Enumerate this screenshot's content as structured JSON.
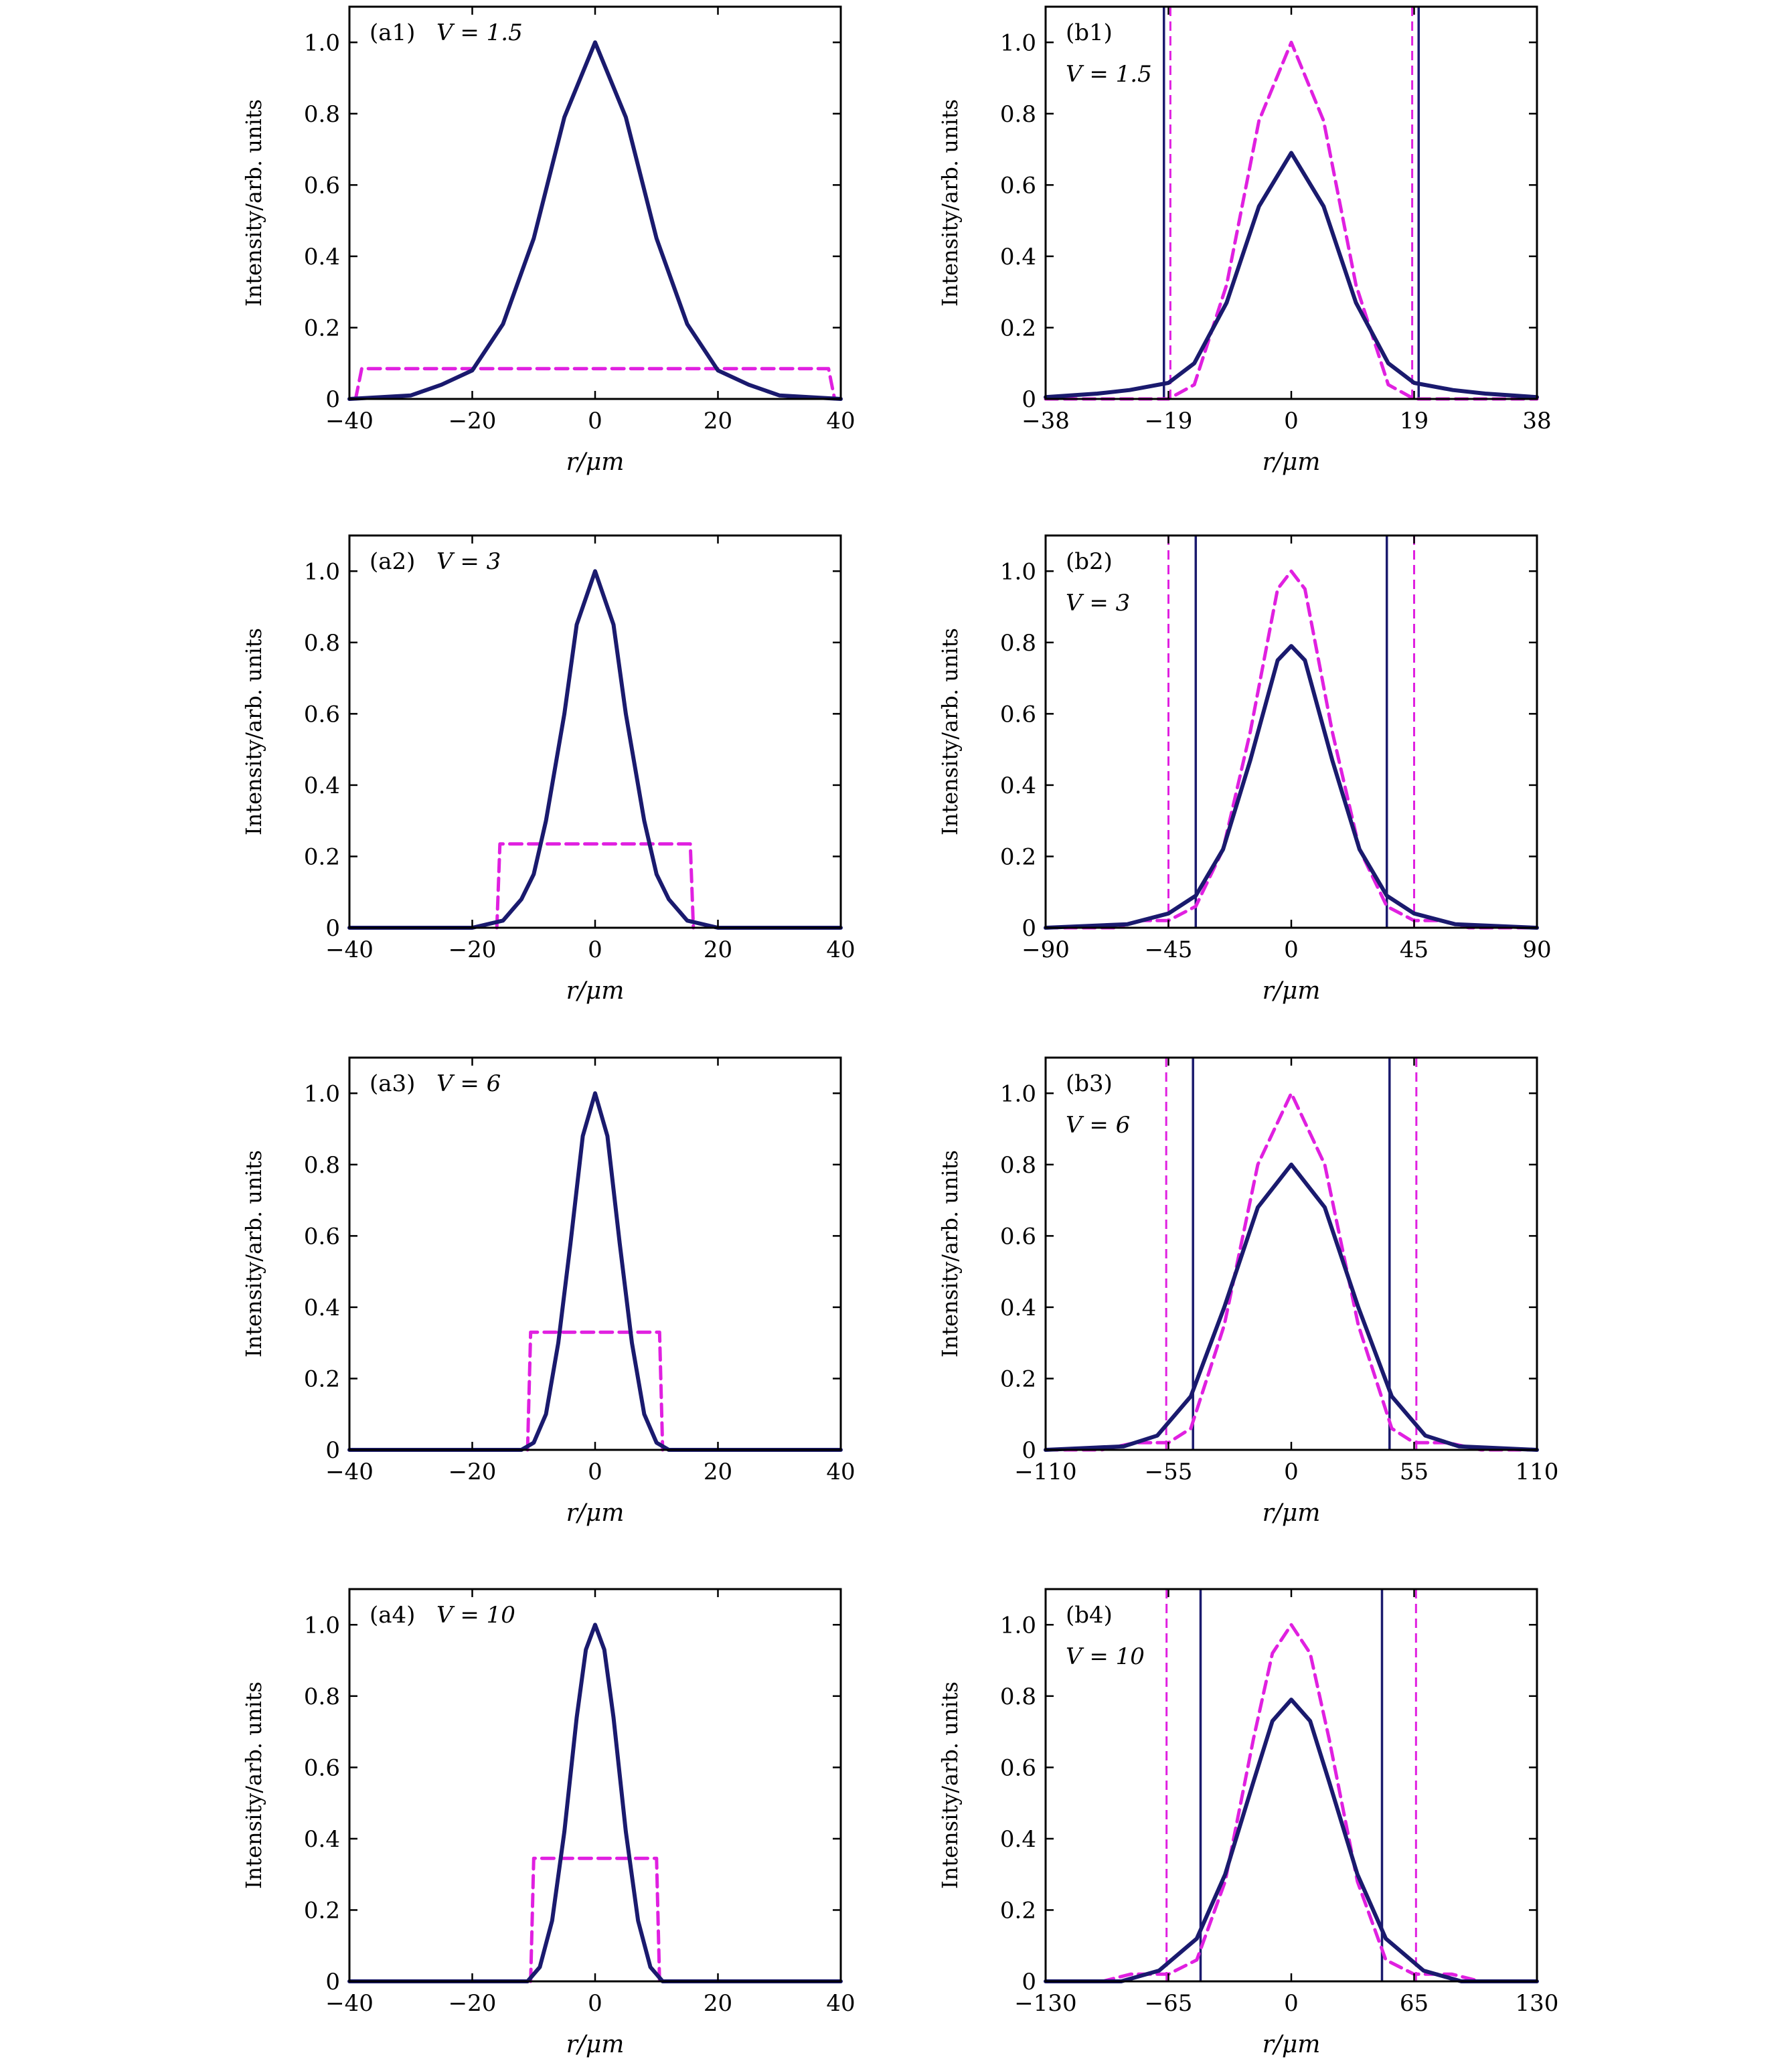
{
  "figure": {
    "ylabel": "Intensity/arb. units",
    "xlabel": "r/μm"
  },
  "colors": {
    "solid": "#1a1a6e",
    "dashed": "#e020e0"
  },
  "chart_data": [
    {
      "id": "a1",
      "type": "line",
      "panel_label": "(a1)",
      "v_label": "V = 1.5",
      "xlim": [
        -40,
        40
      ],
      "ylim": [
        0,
        1.1
      ],
      "xticks": [
        -40,
        -20,
        0,
        20,
        40
      ],
      "xtick_labels": [
        "−40",
        "−20",
        "0",
        "20",
        "40"
      ],
      "yticks": [
        0,
        0.2,
        0.4,
        0.6,
        0.8,
        1.0
      ],
      "ytick_labels": [
        "0",
        "0.2",
        "0.4",
        "0.6",
        "0.8",
        "1.0"
      ],
      "series": [
        {
          "style": "solid",
          "color": "#1a1a6e",
          "x": [
            -40,
            -30,
            -25,
            -20,
            -15,
            -10,
            -5,
            0,
            5,
            10,
            15,
            20,
            25,
            30,
            40
          ],
          "y": [
            0.0,
            0.01,
            0.04,
            0.08,
            0.21,
            0.45,
            0.79,
            1.0,
            0.79,
            0.45,
            0.21,
            0.08,
            0.04,
            0.01,
            0.0
          ]
        },
        {
          "style": "dashed",
          "color": "#e020e0",
          "x": [
            -39,
            -38,
            38,
            39
          ],
          "y": [
            0,
            0.085,
            0.085,
            0
          ]
        }
      ],
      "vlines": []
    },
    {
      "id": "b1",
      "type": "line",
      "panel_label": "(b1)",
      "v_label": "V = 1.5",
      "xlim": [
        -38,
        38
      ],
      "ylim": [
        0,
        1.1
      ],
      "xticks": [
        -38,
        -19,
        0,
        19,
        38
      ],
      "xtick_labels": [
        "−38",
        "−19",
        "0",
        "19",
        "38"
      ],
      "yticks": [
        0,
        0.2,
        0.4,
        0.6,
        0.8,
        1.0
      ],
      "ytick_labels": [
        "0",
        "0.2",
        "0.4",
        "0.6",
        "0.8",
        "1.0"
      ],
      "series": [
        {
          "style": "solid",
          "color": "#1a1a6e",
          "x": [
            -38,
            -30,
            -25,
            -19,
            -15,
            -10,
            -5,
            0,
            5,
            10,
            15,
            19,
            25,
            30,
            38
          ],
          "y": [
            0.005,
            0.015,
            0.025,
            0.045,
            0.1,
            0.27,
            0.54,
            0.69,
            0.54,
            0.27,
            0.1,
            0.045,
            0.025,
            0.015,
            0.005
          ]
        },
        {
          "style": "dashed",
          "color": "#e020e0",
          "x": [
            -38,
            -19,
            -15,
            -10,
            -5,
            0,
            5,
            10,
            15,
            19,
            38
          ],
          "y": [
            0.0,
            0.0,
            0.04,
            0.32,
            0.78,
            1.0,
            0.78,
            0.32,
            0.04,
            0.0,
            0.0
          ]
        }
      ],
      "vlines": [
        {
          "x": -19.7,
          "style": "solid",
          "color": "#1a1a6e"
        },
        {
          "x": 19.7,
          "style": "solid",
          "color": "#1a1a6e"
        },
        {
          "x": -18.7,
          "style": "dashed",
          "color": "#e020e0"
        },
        {
          "x": 18.7,
          "style": "dashed",
          "color": "#e020e0"
        }
      ]
    },
    {
      "id": "a2",
      "type": "line",
      "panel_label": "(a2)",
      "v_label": "V = 3",
      "xlim": [
        -40,
        40
      ],
      "ylim": [
        0,
        1.1
      ],
      "xticks": [
        -40,
        -20,
        0,
        20,
        40
      ],
      "xtick_labels": [
        "−40",
        "−20",
        "0",
        "20",
        "40"
      ],
      "yticks": [
        0,
        0.2,
        0.4,
        0.6,
        0.8,
        1.0
      ],
      "ytick_labels": [
        "0",
        "0.2",
        "0.4",
        "0.6",
        "0.8",
        "1.0"
      ],
      "series": [
        {
          "style": "solid",
          "color": "#1a1a6e",
          "x": [
            -40,
            -20,
            -15,
            -12,
            -10,
            -8,
            -5,
            -3,
            0,
            3,
            5,
            8,
            10,
            12,
            15,
            20,
            40
          ],
          "y": [
            0.0,
            0.0,
            0.02,
            0.08,
            0.15,
            0.3,
            0.6,
            0.85,
            1.0,
            0.85,
            0.6,
            0.3,
            0.15,
            0.08,
            0.02,
            0.0,
            0.0
          ]
        },
        {
          "style": "dashed",
          "color": "#e020e0",
          "x": [
            -16,
            -15.5,
            15.5,
            16
          ],
          "y": [
            0,
            0.235,
            0.235,
            0
          ]
        }
      ],
      "vlines": []
    },
    {
      "id": "b2",
      "type": "line",
      "panel_label": "(b2)",
      "v_label": "V = 3",
      "xlim": [
        -90,
        90
      ],
      "ylim": [
        0,
        1.1
      ],
      "xticks": [
        -90,
        -45,
        0,
        45,
        90
      ],
      "xtick_labels": [
        "−90",
        "−45",
        "0",
        "45",
        "90"
      ],
      "yticks": [
        0,
        0.2,
        0.4,
        0.6,
        0.8,
        1.0
      ],
      "ytick_labels": [
        "0",
        "0.2",
        "0.4",
        "0.6",
        "0.8",
        "1.0"
      ],
      "series": [
        {
          "style": "solid",
          "color": "#1a1a6e",
          "x": [
            -90,
            -60,
            -45,
            -35,
            -25,
            -15,
            -5,
            0,
            5,
            15,
            25,
            35,
            45,
            60,
            90
          ],
          "y": [
            0.0,
            0.01,
            0.04,
            0.09,
            0.22,
            0.47,
            0.75,
            0.79,
            0.75,
            0.47,
            0.22,
            0.09,
            0.04,
            0.01,
            0.0
          ]
        },
        {
          "style": "dashed",
          "color": "#e020e0",
          "x": [
            -90,
            -65,
            -55,
            -45,
            -35,
            -25,
            -15,
            -5,
            0,
            5,
            15,
            25,
            35,
            45,
            55,
            65,
            90
          ],
          "y": [
            0.0,
            0.0,
            0.02,
            0.02,
            0.06,
            0.22,
            0.55,
            0.95,
            1.0,
            0.95,
            0.55,
            0.22,
            0.06,
            0.02,
            0.02,
            0.0,
            0.0
          ]
        }
      ],
      "vlines": [
        {
          "x": -35,
          "style": "solid",
          "color": "#1a1a6e"
        },
        {
          "x": 35,
          "style": "solid",
          "color": "#1a1a6e"
        },
        {
          "x": -45,
          "style": "dashed",
          "color": "#e020e0"
        },
        {
          "x": 45,
          "style": "dashed",
          "color": "#e020e0"
        }
      ]
    },
    {
      "id": "a3",
      "type": "line",
      "panel_label": "(a3)",
      "v_label": "V = 6",
      "xlim": [
        -40,
        40
      ],
      "ylim": [
        0,
        1.1
      ],
      "xticks": [
        -40,
        -20,
        0,
        20,
        40
      ],
      "xtick_labels": [
        "−40",
        "−20",
        "0",
        "20",
        "40"
      ],
      "yticks": [
        0,
        0.2,
        0.4,
        0.6,
        0.8,
        1.0
      ],
      "ytick_labels": [
        "0",
        "0.2",
        "0.4",
        "0.6",
        "0.8",
        "1.0"
      ],
      "series": [
        {
          "style": "solid",
          "color": "#1a1a6e",
          "x": [
            -40,
            -12,
            -10,
            -8,
            -6,
            -4,
            -2,
            0,
            2,
            4,
            6,
            8,
            10,
            12,
            40
          ],
          "y": [
            0.0,
            0.0,
            0.02,
            0.1,
            0.3,
            0.58,
            0.88,
            1.0,
            0.88,
            0.58,
            0.3,
            0.1,
            0.02,
            0.0,
            0.0
          ]
        },
        {
          "style": "dashed",
          "color": "#e020e0",
          "x": [
            -11,
            -10.5,
            10.5,
            11
          ],
          "y": [
            0,
            0.33,
            0.33,
            0
          ]
        }
      ],
      "vlines": []
    },
    {
      "id": "b3",
      "type": "line",
      "panel_label": "(b3)",
      "v_label": "V = 6",
      "xlim": [
        -110,
        110
      ],
      "ylim": [
        0,
        1.1
      ],
      "xticks": [
        -110,
        -55,
        0,
        55,
        110
      ],
      "xtick_labels": [
        "−110",
        "−55",
        "0",
        "55",
        "110"
      ],
      "yticks": [
        0,
        0.2,
        0.4,
        0.6,
        0.8,
        1.0
      ],
      "ytick_labels": [
        "0",
        "0.2",
        "0.4",
        "0.6",
        "0.8",
        "1.0"
      ],
      "series": [
        {
          "style": "solid",
          "color": "#1a1a6e",
          "x": [
            -110,
            -75,
            -60,
            -45,
            -30,
            -15,
            0,
            15,
            30,
            45,
            60,
            75,
            110
          ],
          "y": [
            0.0,
            0.01,
            0.04,
            0.15,
            0.4,
            0.68,
            0.8,
            0.68,
            0.4,
            0.15,
            0.04,
            0.01,
            0.0
          ]
        },
        {
          "style": "dashed",
          "color": "#e020e0",
          "x": [
            -110,
            -85,
            -70,
            -55,
            -45,
            -30,
            -15,
            0,
            15,
            30,
            45,
            55,
            70,
            85,
            110
          ],
          "y": [
            0.0,
            0.0,
            0.02,
            0.02,
            0.06,
            0.35,
            0.8,
            1.0,
            0.8,
            0.35,
            0.06,
            0.02,
            0.02,
            0.0,
            0.0
          ]
        }
      ],
      "vlines": [
        {
          "x": -44,
          "style": "solid",
          "color": "#1a1a6e"
        },
        {
          "x": 44,
          "style": "solid",
          "color": "#1a1a6e"
        },
        {
          "x": -56,
          "style": "dashed",
          "color": "#e020e0"
        },
        {
          "x": 56,
          "style": "dashed",
          "color": "#e020e0"
        }
      ]
    },
    {
      "id": "a4",
      "type": "line",
      "panel_label": "(a4)",
      "v_label": "V = 10",
      "xlim": [
        -40,
        40
      ],
      "ylim": [
        0,
        1.1
      ],
      "xticks": [
        -40,
        -20,
        0,
        20,
        40
      ],
      "xtick_labels": [
        "−40",
        "−20",
        "0",
        "20",
        "40"
      ],
      "yticks": [
        0,
        0.2,
        0.4,
        0.6,
        0.8,
        1.0
      ],
      "ytick_labels": [
        "0",
        "0.2",
        "0.4",
        "0.6",
        "0.8",
        "1.0"
      ],
      "series": [
        {
          "style": "solid",
          "color": "#1a1a6e",
          "x": [
            -40,
            -11,
            -9,
            -7,
            -5,
            -3,
            -1.5,
            0,
            1.5,
            3,
            5,
            7,
            9,
            11,
            40
          ],
          "y": [
            0.0,
            0.0,
            0.04,
            0.17,
            0.42,
            0.74,
            0.93,
            1.0,
            0.93,
            0.74,
            0.42,
            0.17,
            0.04,
            0.0,
            0.0
          ]
        },
        {
          "style": "dashed",
          "color": "#e020e0",
          "x": [
            -10.5,
            -10,
            10,
            10.5
          ],
          "y": [
            0,
            0.345,
            0.345,
            0
          ]
        }
      ],
      "vlines": []
    },
    {
      "id": "b4",
      "type": "line",
      "panel_label": "(b4)",
      "v_label": "V = 10",
      "xlim": [
        -130,
        130
      ],
      "ylim": [
        0,
        1.1
      ],
      "xticks": [
        -130,
        -65,
        0,
        65,
        130
      ],
      "xtick_labels": [
        "−130",
        "−65",
        "0",
        "65",
        "130"
      ],
      "yticks": [
        0,
        0.2,
        0.4,
        0.6,
        0.8,
        1.0
      ],
      "ytick_labels": [
        "0",
        "0.2",
        "0.4",
        "0.6",
        "0.8",
        "1.0"
      ],
      "series": [
        {
          "style": "solid",
          "color": "#1a1a6e",
          "x": [
            -130,
            -90,
            -70,
            -50,
            -35,
            -20,
            -10,
            0,
            10,
            20,
            35,
            50,
            70,
            90,
            130
          ],
          "y": [
            0.0,
            0.0,
            0.03,
            0.12,
            0.3,
            0.56,
            0.73,
            0.79,
            0.73,
            0.56,
            0.3,
            0.12,
            0.03,
            0.0,
            0.0
          ]
        },
        {
          "style": "dashed",
          "color": "#e020e0",
          "x": [
            -130,
            -100,
            -85,
            -65,
            -50,
            -35,
            -20,
            -10,
            0,
            10,
            20,
            35,
            50,
            65,
            85,
            100,
            130
          ],
          "y": [
            0.0,
            0.0,
            0.02,
            0.02,
            0.06,
            0.28,
            0.68,
            0.92,
            1.0,
            0.92,
            0.68,
            0.28,
            0.06,
            0.02,
            0.02,
            0.0,
            0.0
          ]
        }
      ],
      "vlines": [
        {
          "x": -48,
          "style": "solid",
          "color": "#1a1a6e"
        },
        {
          "x": 48,
          "style": "solid",
          "color": "#1a1a6e"
        },
        {
          "x": -66,
          "style": "dashed",
          "color": "#e020e0"
        },
        {
          "x": 66,
          "style": "dashed",
          "color": "#e020e0"
        }
      ]
    }
  ]
}
